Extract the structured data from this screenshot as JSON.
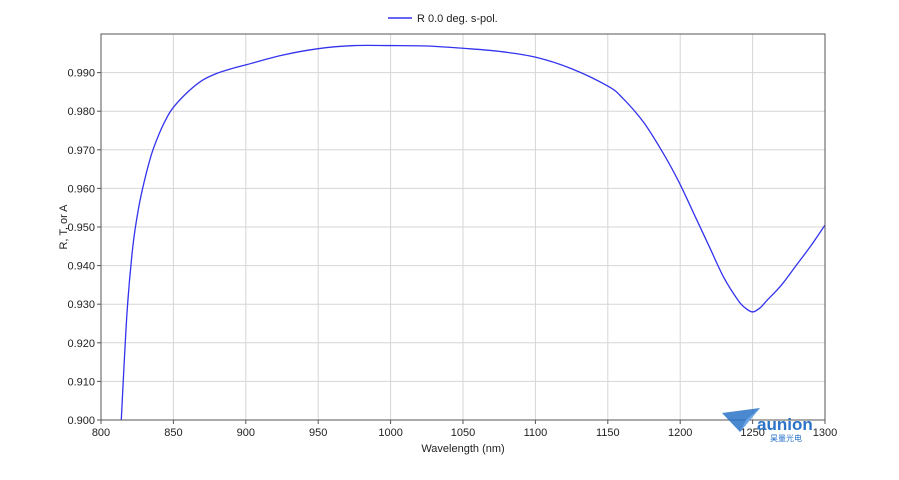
{
  "chart_data": {
    "type": "line",
    "xlabel": "Wavelength (nm)",
    "ylabel": "R, T, or A",
    "xlim": [
      800,
      1300
    ],
    "ylim": [
      0.9,
      1.0
    ],
    "x_ticks": [
      "800",
      "850",
      "900",
      "950",
      "1000",
      "1050",
      "1100",
      "1150",
      "1200",
      "1250",
      "1300"
    ],
    "y_ticks": [
      "0.900",
      "0.910",
      "0.920",
      "0.930",
      "0.940",
      "0.950",
      "0.960",
      "0.970",
      "0.980",
      "0.990"
    ],
    "grid": true,
    "legend_position": "top-center",
    "series": [
      {
        "name": "R 0.0 deg. s-pol.",
        "color": "#3333ee",
        "x": [
          814,
          818,
          822,
          826,
          830,
          835,
          840,
          845,
          850,
          860,
          870,
          880,
          890,
          900,
          925,
          950,
          975,
          1000,
          1025,
          1050,
          1075,
          1100,
          1125,
          1150,
          1160,
          1175,
          1190,
          1200,
          1210,
          1220,
          1230,
          1240,
          1245,
          1250,
          1255,
          1260,
          1270,
          1280,
          1290,
          1300
        ],
        "y": [
          0.9,
          0.928,
          0.945,
          0.955,
          0.962,
          0.969,
          0.974,
          0.978,
          0.981,
          0.985,
          0.988,
          0.9898,
          0.991,
          0.992,
          0.9945,
          0.9962,
          0.997,
          0.997,
          0.9969,
          0.9963,
          0.9955,
          0.994,
          0.991,
          0.9865,
          0.9835,
          0.977,
          0.968,
          0.961,
          0.953,
          0.945,
          0.937,
          0.931,
          0.929,
          0.928,
          0.929,
          0.931,
          0.935,
          0.94,
          0.945,
          0.9505
        ]
      }
    ]
  },
  "watermark": {
    "word": "aunion",
    "subtext": "昊量光电",
    "icon": "paper-plane-logo-icon",
    "color": "#2a73c8"
  }
}
